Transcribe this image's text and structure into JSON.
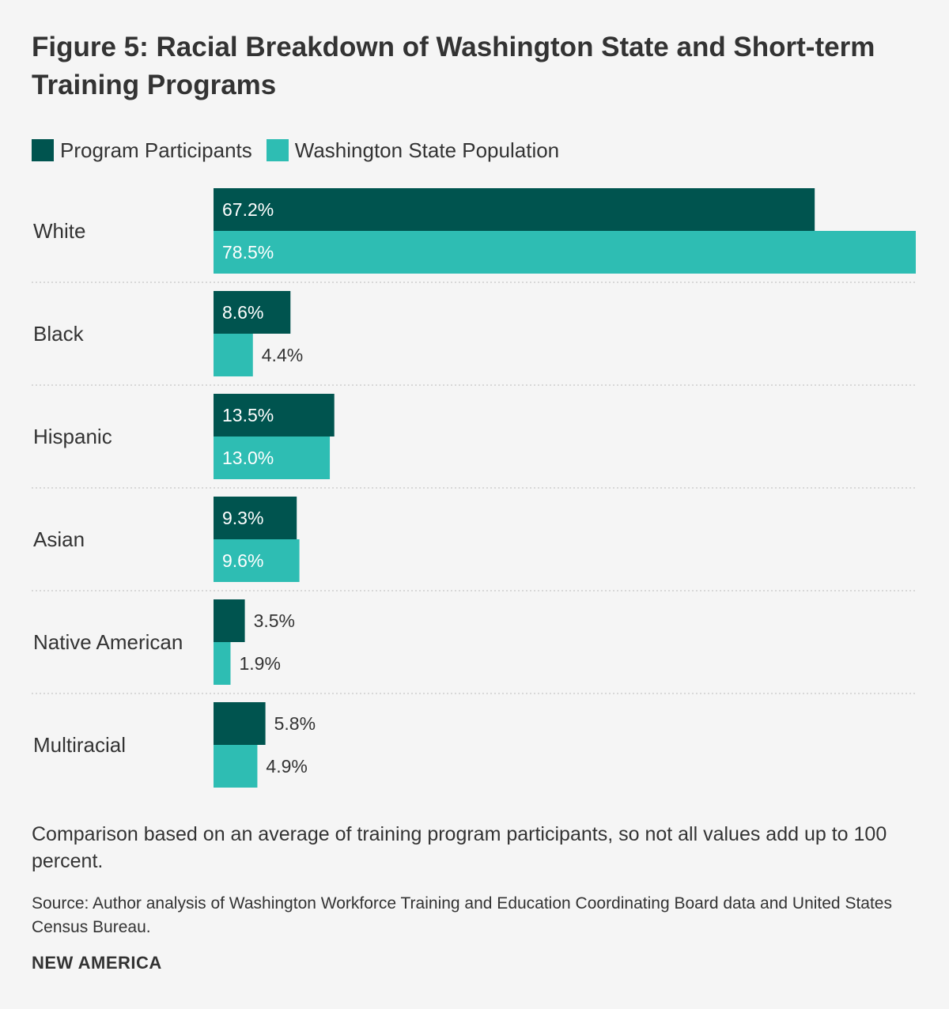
{
  "title": "Figure 5: Racial Breakdown of Washington State and Short-term Training Programs",
  "note": "Comparison based on an average of training program participants, so not all values add up to 100 percent.",
  "source": "Source: Author analysis of Washington Workforce Training and Education Coordinating Board data and United States Census Bureau.",
  "brand": "NEW AMERICA",
  "colors": {
    "participants": "#00544f",
    "population": "#2ebdb3",
    "divider": "#cfcfcf",
    "text": "#333333",
    "label_inside": "#ffffff"
  },
  "chart_data": {
    "type": "bar",
    "orientation": "horizontal",
    "categories": [
      "White",
      "Black",
      "Hispanic",
      "Asian",
      "Native American",
      "Multiracial"
    ],
    "series": [
      {
        "name": "Program Participants",
        "values": [
          67.2,
          8.6,
          13.5,
          9.3,
          3.5,
          5.8
        ],
        "labels": [
          "67.2%",
          "8.6%",
          "13.5%",
          "9.3%",
          "3.5%",
          "5.8%"
        ]
      },
      {
        "name": "Washington State Population",
        "values": [
          78.5,
          4.4,
          13.0,
          9.6,
          1.9,
          4.9
        ],
        "labels": [
          "78.5%",
          "4.4%",
          "13.0%",
          "9.6%",
          "1.9%",
          "4.9%"
        ]
      }
    ],
    "xlim": [
      0,
      78.5
    ],
    "grid": false,
    "legend": "top-left"
  }
}
